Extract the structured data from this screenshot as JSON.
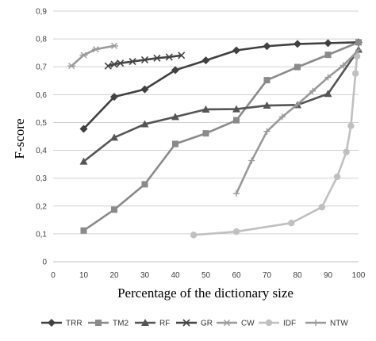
{
  "chart_data": {
    "type": "line",
    "title": "",
    "xlabel": "Percentage  of the dictionary  size",
    "ylabel": "F-score",
    "xlim": [
      0,
      100
    ],
    "ylim": [
      0,
      0.9
    ],
    "xticks": [
      "0",
      "10",
      "20",
      "30",
      "40",
      "50",
      "60",
      "70",
      "80",
      "90",
      "100"
    ],
    "yticks": [
      "0",
      "0,1",
      "0,2",
      "0,3",
      "0,4",
      "0,5",
      "0,6",
      "0,7",
      "0,8",
      "0,9"
    ],
    "grid": "horizontal",
    "legend_position": "bottom",
    "series": [
      {
        "name": "TRR",
        "color": "#404040",
        "marker": "diamond",
        "points": [
          [
            10,
            0.477
          ],
          [
            20,
            0.592
          ],
          [
            30,
            0.619
          ],
          [
            40,
            0.688
          ],
          [
            50,
            0.723
          ],
          [
            60,
            0.759
          ],
          [
            70,
            0.774
          ],
          [
            80,
            0.782
          ],
          [
            90,
            0.785
          ],
          [
            100,
            0.788
          ]
        ]
      },
      {
        "name": "TM2",
        "color": "#8a8a8a",
        "marker": "square",
        "points": [
          [
            10,
            0.112
          ],
          [
            20,
            0.187
          ],
          [
            30,
            0.278
          ],
          [
            40,
            0.423
          ],
          [
            50,
            0.461
          ],
          [
            60,
            0.508
          ],
          [
            70,
            0.652
          ],
          [
            80,
            0.699
          ],
          [
            90,
            0.743
          ],
          [
            100,
            0.788
          ]
        ]
      },
      {
        "name": "RF",
        "color": "#555555",
        "marker": "triangle",
        "points": [
          [
            10,
            0.36
          ],
          [
            20,
            0.446
          ],
          [
            30,
            0.494
          ],
          [
            40,
            0.52
          ],
          [
            50,
            0.547
          ],
          [
            60,
            0.548
          ],
          [
            70,
            0.561
          ],
          [
            80,
            0.563
          ],
          [
            90,
            0.603
          ],
          [
            100,
            0.762
          ]
        ]
      },
      {
        "name": "GR",
        "color": "#444444",
        "marker": "x",
        "points": [
          [
            18,
            0.703
          ],
          [
            20,
            0.709
          ],
          [
            22,
            0.713
          ],
          [
            26,
            0.719
          ],
          [
            30,
            0.725
          ],
          [
            34,
            0.731
          ],
          [
            38,
            0.735
          ],
          [
            42,
            0.741
          ]
        ]
      },
      {
        "name": "CW",
        "color": "#9a9a9a",
        "marker": "star",
        "points": [
          [
            6,
            0.703
          ],
          [
            10,
            0.742
          ],
          [
            14,
            0.763
          ],
          [
            20,
            0.775
          ]
        ]
      },
      {
        "name": "IDF",
        "color": "#c0c0c0",
        "marker": "circle",
        "points": [
          [
            46,
            0.096
          ],
          [
            60,
            0.108
          ],
          [
            78,
            0.139
          ],
          [
            88,
            0.196
          ],
          [
            93,
            0.305
          ],
          [
            96,
            0.394
          ],
          [
            97.5,
            0.488
          ],
          [
            99,
            0.676
          ],
          [
            99.5,
            0.738
          ]
        ]
      },
      {
        "name": "NTW",
        "color": "#999999",
        "marker": "plus",
        "points": [
          [
            60,
            0.245
          ],
          [
            65,
            0.363
          ],
          [
            70,
            0.468
          ],
          [
            75,
            0.52
          ],
          [
            80,
            0.565
          ],
          [
            85,
            0.613
          ],
          [
            90,
            0.662
          ],
          [
            95,
            0.705
          ],
          [
            100,
            0.76
          ]
        ]
      }
    ]
  }
}
